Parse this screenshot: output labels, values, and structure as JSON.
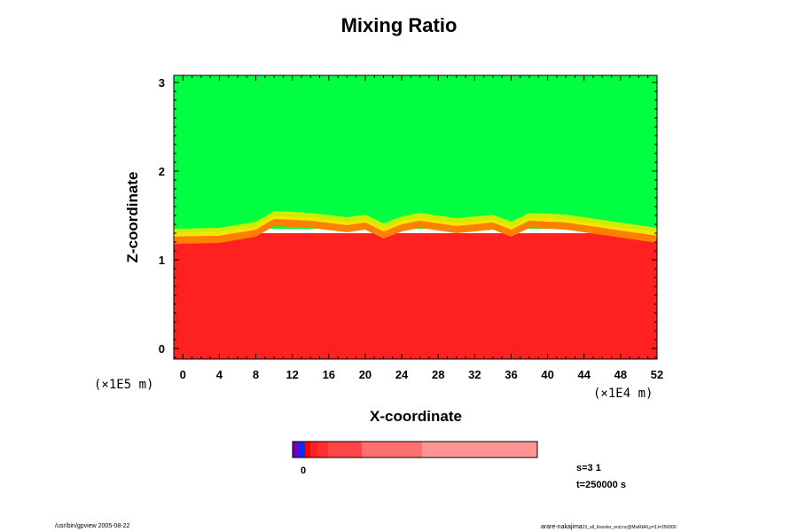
{
  "chart_data": {
    "type": "heatmap",
    "title": "Mixing Ratio",
    "xlabel": "X-coordinate",
    "ylabel": "Z-coordinate",
    "x_unit": "(×1E4 m)",
    "y_unit": "(×1E5 m)",
    "xlim": [
      -1,
      52
    ],
    "ylim": [
      -0.12,
      3.08
    ],
    "x_ticks": [
      0,
      4,
      8,
      12,
      16,
      20,
      24,
      28,
      32,
      36,
      40,
      44,
      48,
      52
    ],
    "y_ticks": [
      0,
      1,
      2,
      3
    ],
    "regions": [
      {
        "name": "upper",
        "color": "#00ff40",
        "z_from": 1.35,
        "z_to": 3.08
      },
      {
        "name": "lower",
        "color": "#ff2020",
        "z_from": -0.12,
        "z_to": 1.3
      }
    ],
    "interface_z": [
      [
        -1,
        1.32
      ],
      [
        4,
        1.33
      ],
      [
        8,
        1.4
      ],
      [
        10,
        1.52
      ],
      [
        14,
        1.5
      ],
      [
        18,
        1.45
      ],
      [
        20,
        1.48
      ],
      [
        22,
        1.38
      ],
      [
        24,
        1.46
      ],
      [
        26,
        1.5
      ],
      [
        30,
        1.44
      ],
      [
        34,
        1.48
      ],
      [
        36,
        1.4
      ],
      [
        38,
        1.5
      ],
      [
        42,
        1.48
      ],
      [
        46,
        1.42
      ],
      [
        50,
        1.36
      ],
      [
        52,
        1.33
      ]
    ],
    "colorbar": {
      "label": "0",
      "segments": [
        "#7000c0",
        "#0030ff",
        "#ff0000",
        "#ff2020",
        "#ff3030",
        "#ff4545",
        "#ff7070",
        "#ff9595"
      ]
    }
  },
  "annotations": {
    "s": "s=3 1",
    "t": "t=250000 s",
    "footer_left": "/usr/bin/gpview 2005-08-22",
    "footer_right": "arare-nakajima",
    "footer_right_sub": "23_all_Kessler_end.nc@MixRtAll,y=3,t=250000"
  }
}
